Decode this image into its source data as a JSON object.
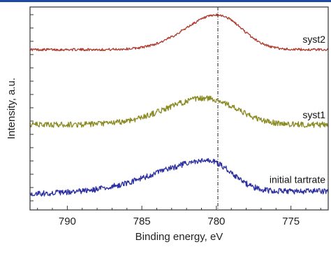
{
  "colors": {
    "top_rule": "#1a4aa6",
    "axis": "#333333",
    "reference_line": "#222222"
  },
  "chart_data": {
    "type": "line",
    "xlabel": "Binding energy, eV",
    "ylabel": "Intensity, a.u.",
    "xlim": [
      792.5,
      772.5
    ],
    "x_reversed": true,
    "x_ticks": [
      790,
      785,
      780,
      775
    ],
    "y_ticks_count": 15,
    "y_tick_labels_shown": false,
    "grid": false,
    "reference_line": {
      "x": 779.9,
      "style": "dash-dot"
    },
    "series": [
      {
        "name": "syst2",
        "color": "#b03a2e",
        "offset": 0.79,
        "peak": {
          "x": 779.9,
          "height": 0.17,
          "width_left": 2.2,
          "width_right": 1.6
        },
        "baseline": 0.0,
        "slope": 0.0,
        "noise": 0.006
      },
      {
        "name": "syst1",
        "color": "#8a8a22",
        "offset": 0.42,
        "peak": {
          "x": 780.7,
          "height": 0.13,
          "width_left": 2.7,
          "width_right": 2.0
        },
        "baseline": 0.0,
        "slope": 0.0,
        "noise": 0.014
      },
      {
        "name": "initial tartrate",
        "color": "#2c2fa0",
        "offset": 0.08,
        "peak": {
          "x": 780.5,
          "height": 0.15,
          "width_left": 3.6,
          "width_right": 1.5
        },
        "baseline": 0.0,
        "slope": 0.012,
        "noise": 0.014
      }
    ]
  }
}
